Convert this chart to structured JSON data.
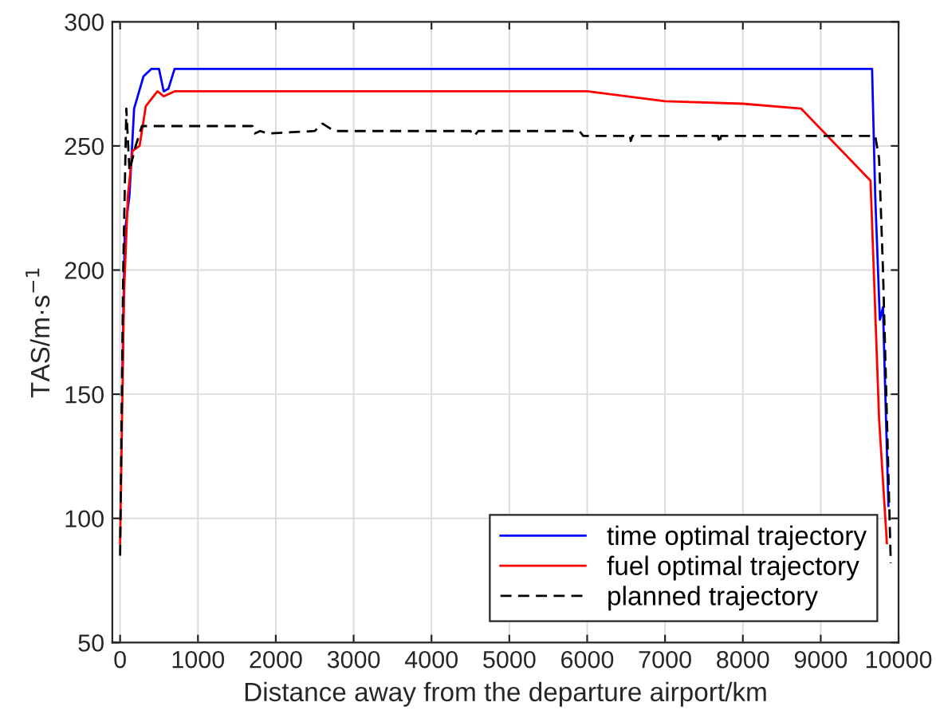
{
  "chart_data": {
    "type": "line",
    "xlabel": "Distance away from the departure airport/km",
    "ylabel": "TAS/m·s$^{−1}$",
    "xlim": [
      -100,
      10000
    ],
    "xticks": [
      0,
      1000,
      2000,
      3000,
      4000,
      5000,
      6000,
      7000,
      8000,
      9000,
      10000
    ],
    "ylim": [
      50,
      300
    ],
    "yticks": [
      50,
      100,
      150,
      200,
      250,
      300
    ],
    "grid": true,
    "legend": "bottom right",
    "series": [
      {
        "name": "time optimal trajectory",
        "color": "#0000ff",
        "line_style": "solid",
        "x": [
          30,
          60,
          120,
          180,
          300,
          400,
          500,
          560,
          620,
          700,
          9660,
          9700,
          9760,
          9800,
          9830,
          9870
        ],
        "values": [
          160,
          215,
          230,
          265,
          278,
          281,
          281,
          272,
          273,
          281,
          281,
          230,
          180,
          185,
          150,
          105
        ]
      },
      {
        "name": "fuel optimal trajectory",
        "color": "#ff0000",
        "line_style": "solid",
        "x": [
          0,
          50,
          100,
          160,
          250,
          330,
          480,
          560,
          700,
          6000,
          7000,
          8000,
          8750,
          9640,
          9750,
          9850
        ],
        "values": [
          90,
          190,
          230,
          248,
          250,
          266,
          272,
          270,
          272,
          272,
          268,
          267,
          265,
          236,
          140,
          90
        ]
      },
      {
        "name": "planned trajectory",
        "color": "#000000",
        "line_style": "dashed",
        "x": [
          0,
          40,
          80,
          120,
          200,
          280,
          1700,
          1730,
          1800,
          1900,
          2500,
          2600,
          2750,
          4500,
          4550,
          4600,
          5900,
          5950,
          6550,
          6560,
          6580,
          7680,
          7700,
          7720,
          9700,
          9750,
          9800,
          9900
        ],
        "values": [
          85,
          200,
          265,
          240,
          250,
          258,
          258,
          255,
          256,
          255,
          256,
          259,
          256,
          256,
          254,
          256,
          256,
          254,
          254,
          252,
          254,
          254,
          251,
          254,
          254,
          245,
          200,
          82
        ]
      }
    ]
  }
}
